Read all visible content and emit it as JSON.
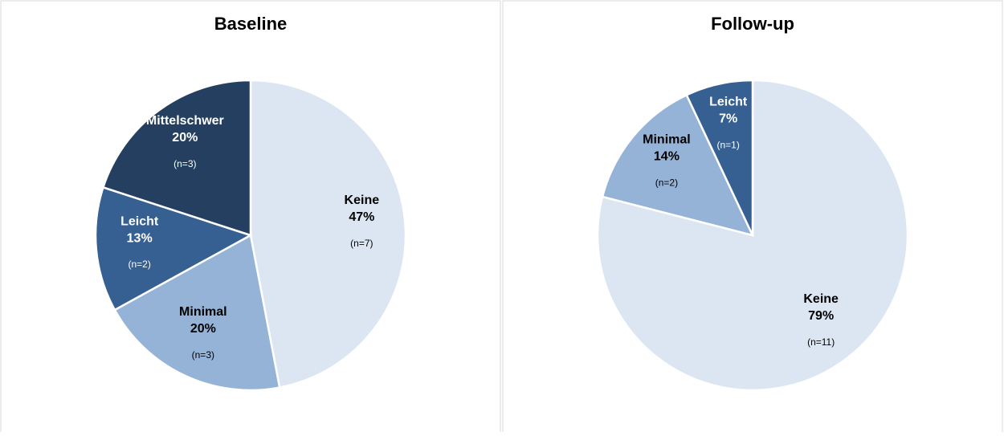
{
  "chart_data": [
    {
      "type": "pie",
      "title": "Baseline",
      "categories": [
        "Keine",
        "Minimal",
        "Leicht",
        "Mittelschwer"
      ],
      "values": [
        47,
        20,
        13,
        20
      ],
      "value_labels": [
        "47%",
        "20%",
        "13%",
        "20%"
      ],
      "count_labels": [
        "(n=7)",
        "(n=3)",
        "(n=2)",
        "(n=3)"
      ],
      "colors": [
        "#dce6f2",
        "#95b3d7",
        "#376092",
        "#243f60"
      ]
    },
    {
      "type": "pie",
      "title": "Follow-up",
      "categories": [
        "Keine",
        "Minimal",
        "Leicht"
      ],
      "values": [
        79,
        14,
        7
      ],
      "value_labels": [
        "79%",
        "14%",
        "7%"
      ],
      "count_labels": [
        "(n=11)",
        "(n=2)",
        "(n=1)"
      ],
      "colors": [
        "#dce6f2",
        "#95b3d7",
        "#376092"
      ]
    }
  ]
}
